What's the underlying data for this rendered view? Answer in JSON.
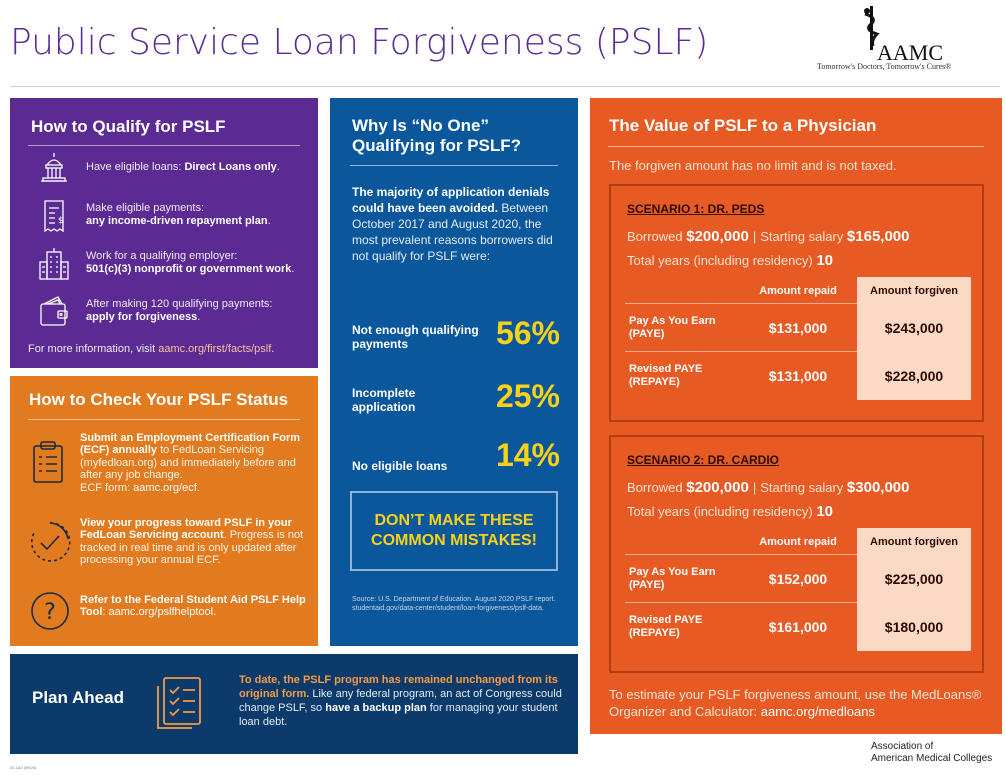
{
  "header": {
    "title": "Public Service Loan Forgiveness (PSLF)",
    "logo_text": "AAMC",
    "logo_tagline": "Tomorrow's Doctors, Tomorrow's Cures®"
  },
  "qualify": {
    "title": "How to Qualify for PSLF",
    "items": [
      {
        "icon": "capitol-building-icon",
        "pre": "Have eligible loans: ",
        "bold": "Direct Loans only",
        "post": "."
      },
      {
        "icon": "bill-dollar-icon",
        "pre": "Make eligible payments: ",
        "bold": "any income-driven repayment plan",
        "post": "."
      },
      {
        "icon": "office-building-icon",
        "pre": "Work for a qualifying employer: ",
        "bold": "501(c)(3) nonprofit or government work",
        "post": "."
      },
      {
        "icon": "wallet-icon",
        "pre": "After making 120 qualifying payments: ",
        "bold": "apply for forgiveness",
        "post": "."
      }
    ],
    "footer_pre": "For more information, visit ",
    "footer_link": "aamc.org/first/facts/pslf",
    "footer_post": "."
  },
  "check": {
    "title": "How to Check Your PSLF Status",
    "items": [
      {
        "icon": "clipboard-list-icon",
        "bold": "Submit an Employment Certification Form (ECF) annually",
        "text": " to FedLoan Servicing (myfedloan.org) and immediately before and after any job change.",
        "line2": "ECF form: ",
        "link": "aamc.org/ecf",
        "post": "."
      },
      {
        "icon": "progress-check-icon",
        "bold": "View your progress toward PSLF in your FedLoan Servicing account",
        "text": ". Progress is not tracked in real time and is only updated after processing your annual ECF."
      },
      {
        "icon": "question-icon",
        "bold": "Refer to the Federal Student Aid PSLF Help Tool",
        "text": ": ",
        "link": "aamc.org/pslfhelptool",
        "post": "."
      }
    ]
  },
  "why": {
    "title": "Why Is “No One” Qualifying for PSLF?",
    "intro_bold": "The majority of application denials could have been avoided.",
    "intro_text": " Between October 2017 and August 2020, the most prevalent reasons borrowers did not qualify for PSLF were:",
    "stats": [
      {
        "label": "Not enough qualifying payments",
        "pct": "56%"
      },
      {
        "label": "Incomplete application",
        "pct": "25%"
      },
      {
        "label": "No eligible loans",
        "pct": "14%"
      }
    ],
    "callout": "DON’T MAKE THESE COMMON MISTAKES!",
    "source": "Source: U.S. Department of Education. August 2020 PSLF report. studentaid.gov/data-center/student/loan-forgiveness/pslf-data."
  },
  "value": {
    "title": "The Value of PSLF to a Physician",
    "subtitle": "The forgiven amount has no limit and is not taxed.",
    "borrowed_label": "Borrowed ",
    "salary_label": "Starting salary ",
    "years_label": "Total years (including residency) ",
    "col_repaid": "Amount repaid",
    "col_forgiven": "Amount forgiven",
    "scenarios": [
      {
        "name": "SCENARIO 1: DR. PEDS",
        "borrowed": "$200,000",
        "salary": "$165,000",
        "years": "10",
        "rows": [
          {
            "plan": "Pay As You Earn (PAYE)",
            "repaid": "$131,000",
            "forgiven": "$243,000"
          },
          {
            "plan": "Revised PAYE (REPAYE)",
            "repaid": "$131,000",
            "forgiven": "$228,000"
          }
        ]
      },
      {
        "name": "SCENARIO 2: DR. CARDIO",
        "borrowed": "$200,000",
        "salary": "$300,000",
        "years": "10",
        "rows": [
          {
            "plan": "Pay As You Earn (PAYE)",
            "repaid": "$152,000",
            "forgiven": "$225,000"
          },
          {
            "plan": "Revised PAYE (REPAYE)",
            "repaid": "$161,000",
            "forgiven": "$180,000"
          }
        ]
      }
    ],
    "footer_pre": "To estimate your PSLF forgiveness amount, use the MedLoans® Organizer and Calculator: ",
    "footer_link": "aamc.org/medloans"
  },
  "plan": {
    "title": "Plan Ahead",
    "icon": "checklist-icon",
    "lead_bold": "To date, the PSLF program has remained unchanged from its original form.",
    "text1": " Like any federal program, an act of Congress could change PSLF, so ",
    "bold2": "have a backup plan",
    "text2": " for managing your student loan debt."
  },
  "footer": {
    "assoc_line1": "Association of",
    "assoc_line2": "American Medical Colleges",
    "code": "20-142 (09/20)"
  }
}
